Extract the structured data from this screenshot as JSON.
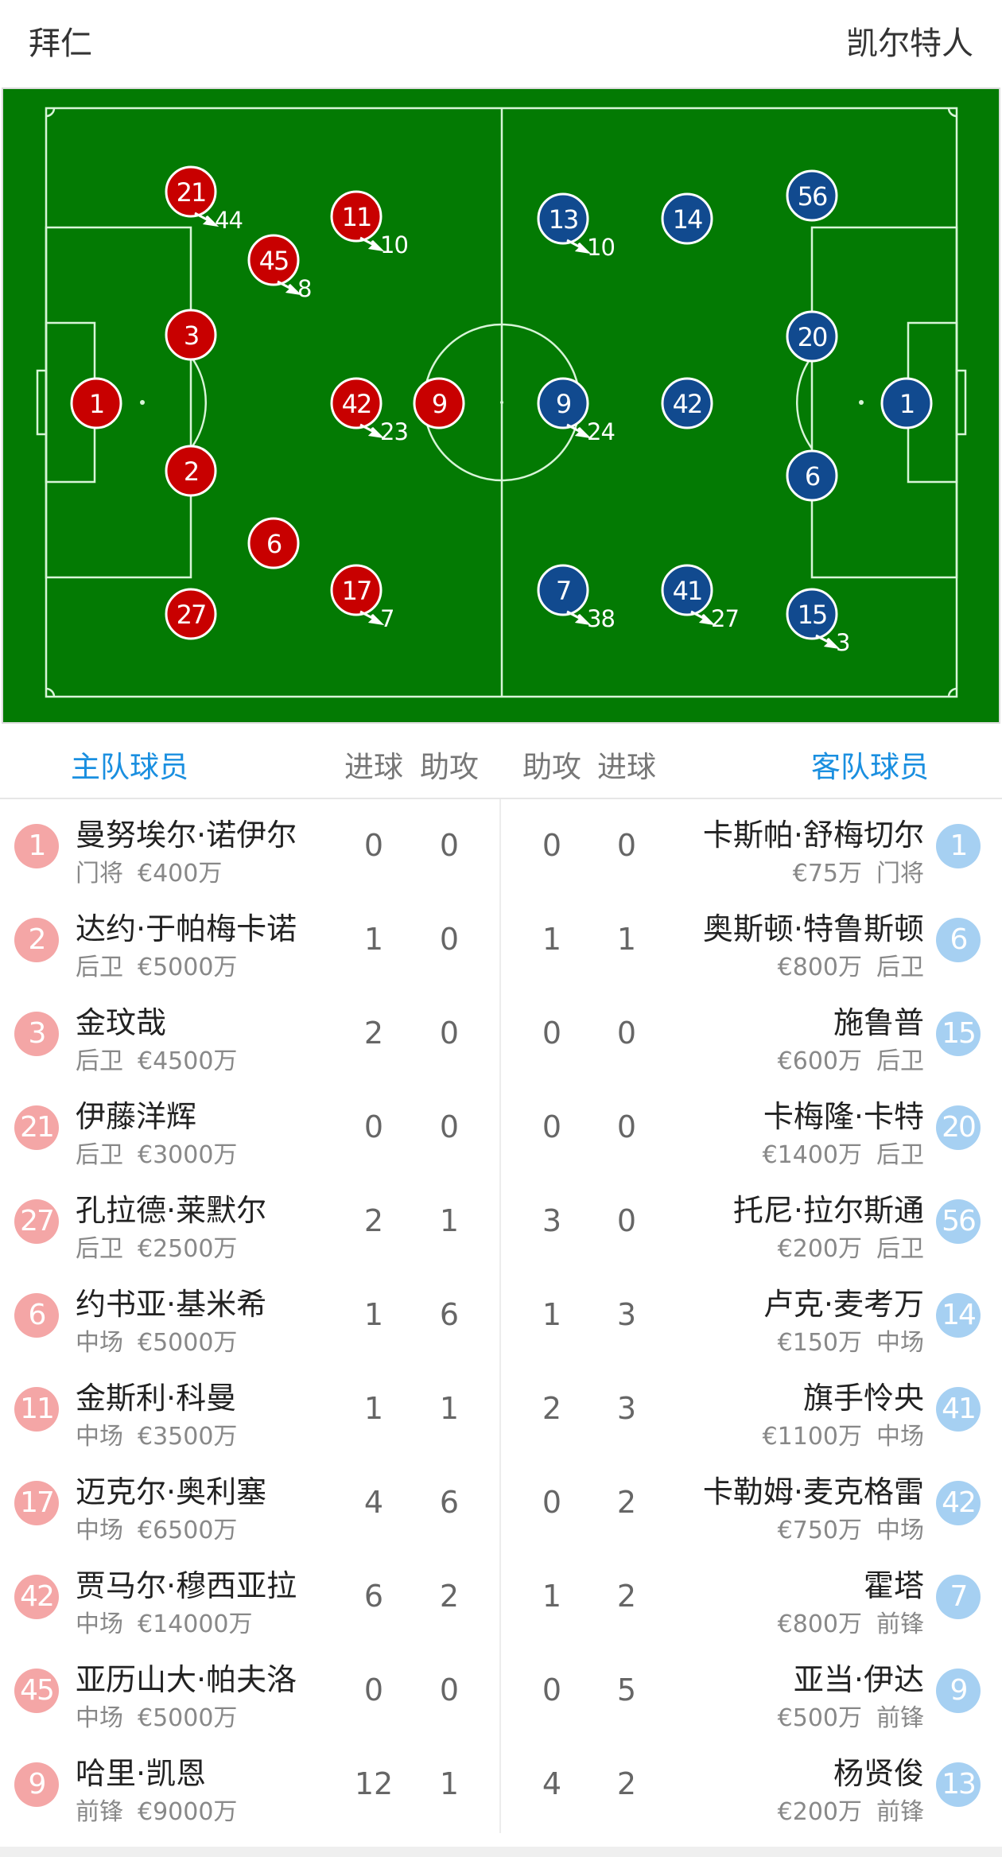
{
  "header": {
    "home_team": "拜仁",
    "away_team": "凯尔特人"
  },
  "colors": {
    "pitch": "#037a03",
    "home_marker": "#c80000",
    "away_marker": "#114a8f",
    "home_badge": "#f4a6a6",
    "away_badge": "#a6d0f2",
    "accent": "#1a8fe0"
  },
  "pitch": {
    "home_players": [
      {
        "number": "21",
        "sub": "44"
      },
      {
        "number": "11",
        "sub": "10"
      },
      {
        "number": "45",
        "sub": "8"
      },
      {
        "number": "3"
      },
      {
        "number": "1"
      },
      {
        "number": "42",
        "sub": "23"
      },
      {
        "number": "9"
      },
      {
        "number": "2"
      },
      {
        "number": "6"
      },
      {
        "number": "17",
        "sub": "7"
      },
      {
        "number": "27"
      }
    ],
    "away_players": [
      {
        "number": "13",
        "sub": "10"
      },
      {
        "number": "14"
      },
      {
        "number": "56"
      },
      {
        "number": "20"
      },
      {
        "number": "1"
      },
      {
        "number": "9",
        "sub": "24"
      },
      {
        "number": "42"
      },
      {
        "number": "6"
      },
      {
        "number": "7",
        "sub": "38"
      },
      {
        "number": "41",
        "sub": "27"
      },
      {
        "number": "15",
        "sub": "3"
      }
    ]
  },
  "table_header": {
    "home_label": "主队球员",
    "goals": "进球",
    "assists": "助攻",
    "away_label": "客队球员"
  },
  "home_roster": [
    {
      "number": "1",
      "name": "曼努埃尔·诺伊尔",
      "position": "门将",
      "value": "€400万",
      "goals": "0",
      "assists": "0"
    },
    {
      "number": "2",
      "name": "达约·于帕梅卡诺",
      "position": "后卫",
      "value": "€5000万",
      "goals": "1",
      "assists": "0"
    },
    {
      "number": "3",
      "name": "金玟哉",
      "position": "后卫",
      "value": "€4500万",
      "goals": "2",
      "assists": "0"
    },
    {
      "number": "21",
      "name": "伊藤洋辉",
      "position": "后卫",
      "value": "€3000万",
      "goals": "0",
      "assists": "0"
    },
    {
      "number": "27",
      "name": "孔拉德·莱默尔",
      "position": "后卫",
      "value": "€2500万",
      "goals": "2",
      "assists": "1"
    },
    {
      "number": "6",
      "name": "约书亚·基米希",
      "position": "中场",
      "value": "€5000万",
      "goals": "1",
      "assists": "6"
    },
    {
      "number": "11",
      "name": "金斯利·科曼",
      "position": "中场",
      "value": "€3500万",
      "goals": "1",
      "assists": "1"
    },
    {
      "number": "17",
      "name": "迈克尔·奥利塞",
      "position": "中场",
      "value": "€6500万",
      "goals": "4",
      "assists": "6"
    },
    {
      "number": "42",
      "name": "贾马尔·穆西亚拉",
      "position": "中场",
      "value": "€14000万",
      "goals": "6",
      "assists": "2"
    },
    {
      "number": "45",
      "name": "亚历山大·帕夫洛",
      "position": "中场",
      "value": "€5000万",
      "goals": "0",
      "assists": "0"
    },
    {
      "number": "9",
      "name": "哈里·凯恩",
      "position": "前锋",
      "value": "€9000万",
      "goals": "12",
      "assists": "1"
    }
  ],
  "away_roster": [
    {
      "number": "1",
      "name": "卡斯帕·舒梅切尔",
      "position": "门将",
      "value": "€75万",
      "goals": "0",
      "assists": "0"
    },
    {
      "number": "6",
      "name": "奥斯顿·特鲁斯顿",
      "position": "后卫",
      "value": "€800万",
      "goals": "1",
      "assists": "1"
    },
    {
      "number": "15",
      "name": "施鲁普",
      "position": "后卫",
      "value": "€600万",
      "goals": "0",
      "assists": "0"
    },
    {
      "number": "20",
      "name": "卡梅隆·卡特",
      "position": "后卫",
      "value": "€1400万",
      "goals": "0",
      "assists": "0"
    },
    {
      "number": "56",
      "name": "托尼·拉尔斯通",
      "position": "后卫",
      "value": "€200万",
      "goals": "0",
      "assists": "3"
    },
    {
      "number": "14",
      "name": "卢克·麦考万",
      "position": "中场",
      "value": "€150万",
      "goals": "3",
      "assists": "1"
    },
    {
      "number": "41",
      "name": "旗手怜央",
      "position": "中场",
      "value": "€1100万",
      "goals": "3",
      "assists": "2"
    },
    {
      "number": "42",
      "name": "卡勒姆·麦克格雷",
      "position": "中场",
      "value": "€750万",
      "goals": "2",
      "assists": "0"
    },
    {
      "number": "7",
      "name": "霍塔",
      "position": "前锋",
      "value": "€800万",
      "goals": "2",
      "assists": "1"
    },
    {
      "number": "9",
      "name": "亚当·伊达",
      "position": "前锋",
      "value": "€500万",
      "goals": "5",
      "assists": "0"
    },
    {
      "number": "13",
      "name": "杨贤俊",
      "position": "前锋",
      "value": "€200万",
      "goals": "2",
      "assists": "4"
    }
  ]
}
